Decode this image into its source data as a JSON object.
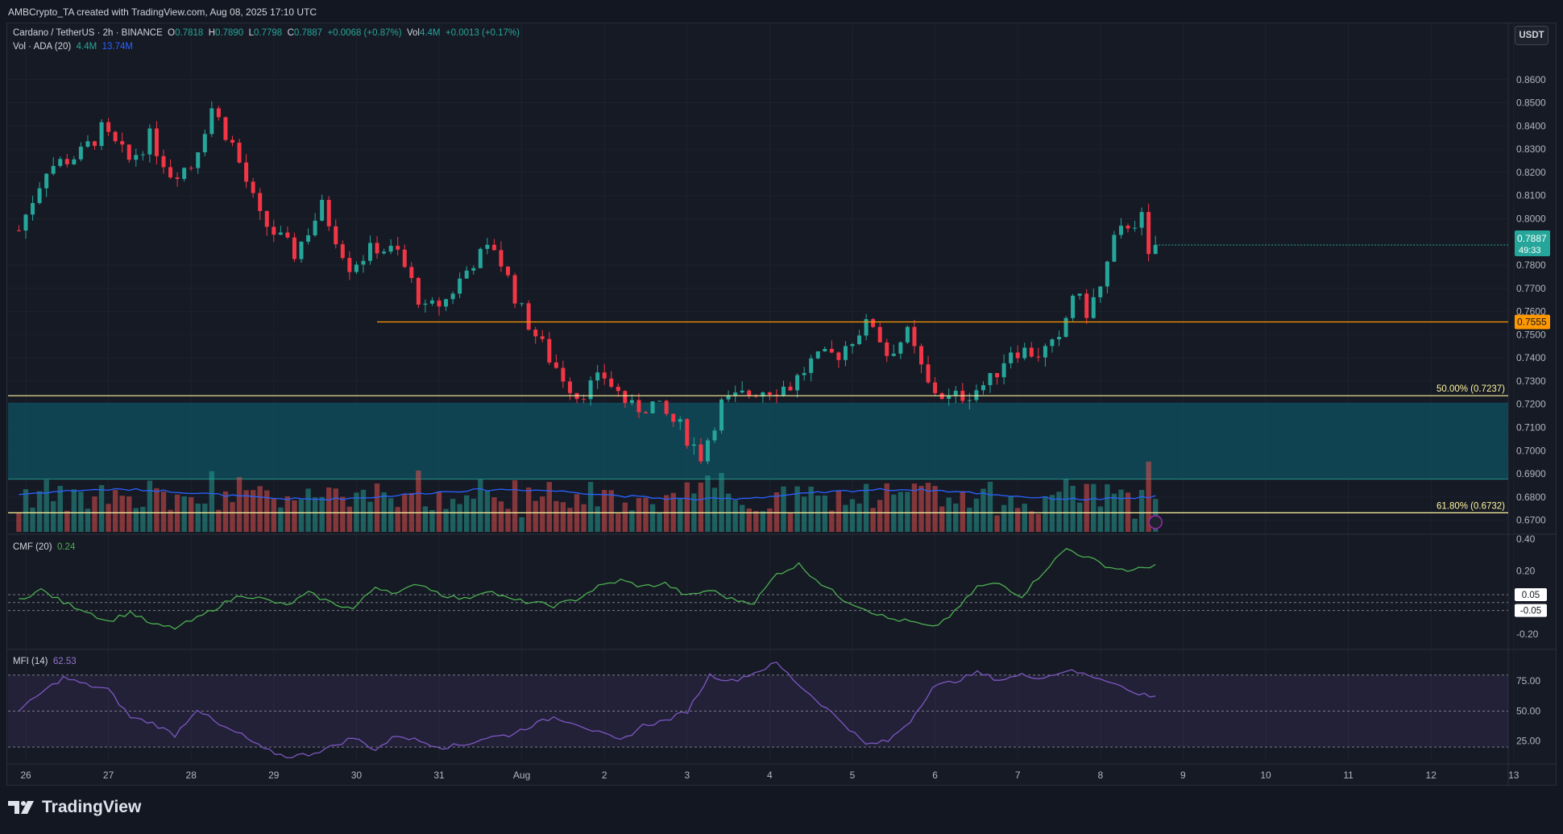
{
  "header": {
    "attribution": "AMBCrypto_TA created with TradingView.com, Aug 08, 2025 17:10 UTC"
  },
  "symbol": {
    "name": "Cardano / TetherUS · 2h · BINANCE",
    "o_label": "O",
    "o": "0.7818",
    "h_label": "H",
    "h": "0.7890",
    "l_label": "L",
    "l": "0.7798",
    "c_label": "C",
    "c": "0.7887",
    "change": "+0.0068 (+0.87%)",
    "vol_label": "Vol",
    "vol": "4.4M",
    "vol_change": "+0.0013 (+0.17%)"
  },
  "volume_legend": {
    "label": "Vol · ADA (20)",
    "value1": "4.4M",
    "value2": "13.74M"
  },
  "currency_button": "USDT",
  "price_badge": {
    "value": "0.7887",
    "countdown": "49:33"
  },
  "level_badge": "0.7555",
  "fib_labels": {
    "fib50": "50.00% (0.7237)",
    "fib618": "61.80% (0.6732)"
  },
  "cmf": {
    "label": "CMF (20)",
    "value": "0.24",
    "level_badges": [
      "0.05",
      "-0.05"
    ]
  },
  "mfi": {
    "label": "MFI (14)",
    "value": "62.53"
  },
  "brand": "TradingView",
  "colors": {
    "up": "#26a69a",
    "down": "#f23645",
    "level_line": "#ff9800",
    "fib_line": "#fff59d",
    "zone": "#0e5160",
    "cmf_line": "#4caf50",
    "mfi_line": "#7e57c2",
    "vol_ma": "#2962ff"
  },
  "chart_data": [
    {
      "type": "candlestick",
      "title": "Cardano / TetherUS · 2h · BINANCE",
      "x_axis_ticks": [
        "26",
        "27",
        "28",
        "29",
        "30",
        "31",
        "Aug",
        "2",
        "3",
        "4",
        "5",
        "6",
        "7",
        "8",
        "9",
        "10",
        "11",
        "12",
        "13"
      ],
      "y_ticks": [
        0.86,
        0.85,
        0.84,
        0.83,
        0.82,
        0.81,
        0.8,
        0.78,
        0.77,
        0.76,
        0.75,
        0.74,
        0.73,
        0.72,
        0.71,
        0.7,
        0.69,
        0.68,
        0.67
      ],
      "y_tick_labels": [
        "0.8600",
        "0.8500",
        "0.8400",
        "0.8300",
        "0.8200",
        "0.8100",
        "0.8000",
        "0.7800",
        "0.7700",
        "0.7600",
        "0.7500",
        "0.7400",
        "0.7300",
        "0.7200",
        "0.7100",
        "0.7000",
        "0.6900",
        "0.6800",
        "0.6700"
      ],
      "ylim": [
        0.665,
        0.87
      ],
      "series_close_path": [
        [
          "07-25 22:00",
          0.795
        ],
        [
          "07-26 06:00",
          0.822
        ],
        [
          "07-26 16:00",
          0.828
        ],
        [
          "07-26 22:00",
          0.838
        ],
        [
          "07-27 06:00",
          0.825
        ],
        [
          "07-27 12:00",
          0.835
        ],
        [
          "07-27 18:00",
          0.82
        ],
        [
          "07-28 00:00",
          0.823
        ],
        [
          "07-28 06:00",
          0.848
        ],
        [
          "07-28 12:00",
          0.832
        ],
        [
          "07-28 20:00",
          0.8
        ],
        [
          "07-29 06:00",
          0.785
        ],
        [
          "07-29 14:00",
          0.805
        ],
        [
          "07-29 22:00",
          0.78
        ],
        [
          "07-30 06:00",
          0.788
        ],
        [
          "07-30 12:00",
          0.785
        ],
        [
          "07-30 20:00",
          0.76
        ],
        [
          "07-31 02:00",
          0.765
        ],
        [
          "07-31 10:00",
          0.782
        ],
        [
          "07-31 16:00",
          0.788
        ],
        [
          "08-01 00:00",
          0.76
        ],
        [
          "08-01 08:00",
          0.74
        ],
        [
          "08-01 16:00",
          0.724
        ],
        [
          "08-02 00:00",
          0.732
        ],
        [
          "08-02 08:00",
          0.718
        ],
        [
          "08-02 14:00",
          0.72
        ],
        [
          "08-02 22:00",
          0.71
        ],
        [
          "08-03 04:00",
          0.698
        ],
        [
          "08-03 10:00",
          0.72
        ],
        [
          "08-03 20:00",
          0.726
        ],
        [
          "08-04 06:00",
          0.728
        ],
        [
          "08-04 12:00",
          0.738
        ],
        [
          "08-04 20:00",
          0.742
        ],
        [
          "08-05 02:00",
          0.752
        ],
        [
          "08-05 06:00",
          0.755
        ],
        [
          "08-05 10:00",
          0.742
        ],
        [
          "08-05 16:00",
          0.75
        ],
        [
          "08-05 22:00",
          0.728
        ],
        [
          "08-06 04:00",
          0.722
        ],
        [
          "08-06 10:00",
          0.725
        ],
        [
          "08-06 16:00",
          0.73
        ],
        [
          "08-06 22:00",
          0.744
        ],
        [
          "08-07 06:00",
          0.742
        ],
        [
          "08-07 12:00",
          0.746
        ],
        [
          "08-07 16:00",
          0.768
        ],
        [
          "08-07 20:00",
          0.76
        ],
        [
          "08-08 00:00",
          0.77
        ],
        [
          "08-08 04:00",
          0.79
        ],
        [
          "08-08 08:00",
          0.798
        ],
        [
          "08-08 12:00",
          0.8
        ],
        [
          "08-08 14:00",
          0.782
        ],
        [
          "08-08 16:00",
          0.7887
        ]
      ],
      "last_price": 0.7887,
      "horizontal_levels": [
        {
          "name": "resistance",
          "value": 0.7555
        },
        {
          "name": "fib_50",
          "label": "50.00% (0.7237)",
          "value": 0.7237
        },
        {
          "name": "fib_61.8",
          "label": "61.80% (0.6732)",
          "value": 0.6732
        }
      ],
      "zone": {
        "from": 0.6877,
        "to": 0.7207
      }
    },
    {
      "type": "bar",
      "title": "Vol · ADA (20)",
      "values_summary": {
        "last": "4.4M",
        "ma": "13.74M"
      },
      "ma_period": 20
    },
    {
      "type": "line",
      "title": "CMF (20)",
      "last_value": 0.24,
      "y_ticks": [
        0.4,
        0.2,
        -0.2
      ],
      "y_tick_labels": [
        "0.40",
        "0.20",
        "-0.20"
      ],
      "ylim": [
        -0.28,
        0.42
      ],
      "reference_levels": [
        0.05,
        -0.05,
        0.0
      ],
      "values": [
        0.02,
        0.08,
        0.0,
        -0.05,
        -0.12,
        -0.06,
        -0.14,
        -0.16,
        -0.1,
        -0.02,
        0.05,
        0.02,
        -0.02,
        0.06,
        0.0,
        -0.04,
        0.1,
        0.06,
        0.12,
        0.05,
        0.02,
        0.08,
        0.02,
        0.0,
        -0.02,
        0.02,
        0.1,
        0.14,
        0.1,
        0.12,
        0.04,
        0.08,
        0.02,
        0.0,
        0.18,
        0.24,
        0.12,
        0.02,
        -0.04,
        -0.1,
        -0.12,
        -0.16,
        -0.06,
        0.1,
        0.12,
        0.04,
        0.2,
        0.34,
        0.28,
        0.22,
        0.2,
        0.24
      ]
    },
    {
      "type": "line",
      "title": "MFI (14)",
      "last_value": 62.53,
      "y_ticks": [
        75,
        50,
        25
      ],
      "y_tick_labels": [
        "75.00",
        "50.00",
        "25.00"
      ],
      "ylim": [
        8,
        100
      ],
      "reference_levels": [
        80,
        50,
        20
      ],
      "values": [
        50,
        65,
        78,
        72,
        68,
        45,
        40,
        30,
        52,
        38,
        30,
        18,
        12,
        14,
        20,
        28,
        18,
        30,
        25,
        20,
        22,
        28,
        30,
        38,
        45,
        40,
        32,
        25,
        38,
        42,
        50,
        80,
        75,
        82,
        90,
        72,
        56,
        40,
        22,
        25,
        42,
        70,
        75,
        82,
        76,
        80,
        78,
        84,
        80,
        75,
        65,
        62.53
      ]
    }
  ]
}
